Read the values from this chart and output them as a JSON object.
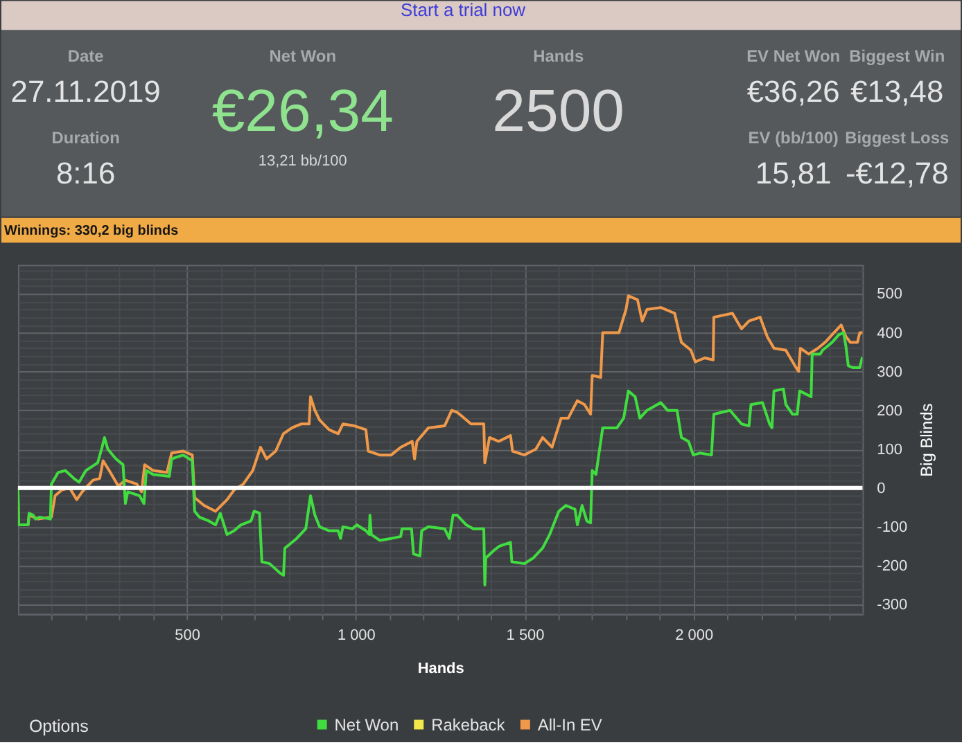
{
  "chart_data": [
    {
      "type": "other",
      "annotations": [
        "Start a trial now",
        "Date",
        "27.11.2019",
        "Duration",
        "8:16",
        "Net Won",
        "€26,34",
        "13,21 bb/100",
        "Hands",
        "2500",
        "EV Net Won",
        "€36,26",
        "Biggest Win",
        "€13,48",
        "EV (bb/100)",
        "15,81",
        "Biggest Loss",
        "-€12,78"
      ]
    },
    {
      "type": "line",
      "title": "Winnings: 330,2 big blinds",
      "xlabel": "Hands",
      "ylabel": "Big Blinds",
      "annotations": [
        "Options"
      ],
      "xlim": [
        0,
        2500
      ],
      "ylim": [
        -325,
        575
      ],
      "xticks": [
        {
          "value": 100,
          "label": null
        },
        {
          "value": 200,
          "label": null
        },
        {
          "value": 300,
          "label": null
        },
        {
          "value": 400,
          "label": null
        },
        500,
        {
          "value": 600,
          "label": null
        },
        {
          "value": 700,
          "label": null
        },
        {
          "value": 800,
          "label": null
        },
        {
          "value": 900,
          "label": null
        },
        {
          "value": 1000,
          "label": "1 000"
        },
        {
          "value": 1100,
          "label": null
        },
        {
          "value": 1200,
          "label": null
        },
        {
          "value": 1300,
          "label": null
        },
        {
          "value": 1400,
          "label": null
        },
        {
          "value": 1500,
          "label": "1 500"
        },
        {
          "value": 1600,
          "label": null
        },
        {
          "value": 1700,
          "label": null
        },
        {
          "value": 1800,
          "label": null
        },
        {
          "value": 1900,
          "label": null
        },
        {
          "value": 2000,
          "label": "2 000"
        },
        {
          "value": 2100,
          "label": null
        },
        {
          "value": 2200,
          "label": null
        },
        {
          "value": 2300,
          "label": null
        },
        {
          "value": 2400,
          "label": null
        }
      ],
      "yticks": [
        {
          "value": -320,
          "label": null
        },
        -300,
        {
          "value": -280,
          "label": null
        },
        {
          "value": -260,
          "label": null
        },
        {
          "value": -240,
          "label": null
        },
        {
          "value": -220,
          "label": null
        },
        -200,
        {
          "value": -180,
          "label": null
        },
        {
          "value": -160,
          "label": null
        },
        {
          "value": -140,
          "label": null
        },
        {
          "value": -120,
          "label": null
        },
        -100,
        {
          "value": -80,
          "label": null
        },
        {
          "value": -60,
          "label": null
        },
        {
          "value": -40,
          "label": null
        },
        {
          "value": -20,
          "label": null
        },
        0,
        {
          "value": 20,
          "label": null
        },
        {
          "value": 40,
          "label": null
        },
        {
          "value": 60,
          "label": null
        },
        {
          "value": 80,
          "label": null
        },
        100,
        {
          "value": 120,
          "label": null
        },
        {
          "value": 140,
          "label": null
        },
        {
          "value": 160,
          "label": null
        },
        {
          "value": 180,
          "label": null
        },
        200,
        {
          "value": 220,
          "label": null
        },
        {
          "value": 240,
          "label": null
        },
        {
          "value": 260,
          "label": null
        },
        {
          "value": 280,
          "label": null
        },
        300,
        {
          "value": 320,
          "label": null
        },
        {
          "value": 340,
          "label": null
        },
        {
          "value": 360,
          "label": null
        },
        {
          "value": 380,
          "label": null
        },
        400,
        {
          "value": 420,
          "label": null
        },
        {
          "value": 440,
          "label": null
        },
        {
          "value": 460,
          "label": null
        },
        {
          "value": 480,
          "label": null
        },
        500,
        {
          "value": 520,
          "label": null
        },
        {
          "value": 540,
          "label": null
        },
        {
          "value": 560,
          "label": null
        }
      ],
      "grid": true,
      "legend": "bottom",
      "ref_lines": [
        {
          "axis": "y",
          "value": 0,
          "color": "#ffffff"
        }
      ],
      "series": [
        {
          "name": "Net Won",
          "color": "#40dc40",
          "x": [
            0,
            2,
            30,
            33,
            45,
            52,
            65,
            96,
            99,
            119,
            140,
            165,
            181,
            201,
            236,
            249,
            256,
            266,
            290,
            311,
            318,
            325,
            360,
            373,
            380,
            400,
            448,
            455,
            489,
            516,
            523,
            537,
            565,
            585,
            599,
            619,
            640,
            660,
            690,
            699,
            715,
            722,
            745,
            777,
            786,
            790,
            825,
            852,
            866,
            879,
            893,
            920,
            948,
            955,
            962,
            990,
            1003,
            1030,
            1040,
            1042,
            1046,
            1071,
            1105,
            1133,
            1137,
            1165,
            1171,
            1190,
            1195,
            1215,
            1263,
            1277,
            1288,
            1300,
            1327,
            1348,
            1379,
            1382,
            1385,
            1410,
            1425,
            1458,
            1462,
            1499,
            1526,
            1553,
            1574,
            1601,
            1622,
            1649,
            1656,
            1670,
            1684,
            1695,
            1700,
            1711,
            1731,
            1773,
            1793,
            1807,
            1827,
            1841,
            1862,
            1903,
            1923,
            1951,
            1964,
            1985,
            1999,
            2019,
            2053,
            2060,
            2108,
            2142,
            2164,
            2170,
            2204,
            2225,
            2232,
            2238,
            2266,
            2273,
            2293,
            2307,
            2314,
            2348,
            2351,
            2375,
            2382,
            2410,
            2430,
            2444,
            2451,
            2458,
            2471,
            2492,
            2499,
            2500
          ],
          "values": [
            0,
            -95,
            -95,
            -65,
            -70,
            -80,
            -75,
            -80,
            10,
            40,
            45,
            25,
            15,
            45,
            65,
            105,
            130,
            100,
            75,
            60,
            -40,
            -10,
            -20,
            -40,
            45,
            35,
            30,
            75,
            85,
            70,
            -60,
            -75,
            -85,
            -95,
            -65,
            -120,
            -110,
            -95,
            -85,
            -60,
            -65,
            -190,
            -195,
            -220,
            -225,
            -155,
            -130,
            -105,
            -20,
            -70,
            -100,
            -110,
            -110,
            -130,
            -100,
            -105,
            -95,
            -110,
            -120,
            -70,
            -120,
            -135,
            -130,
            -125,
            -105,
            -105,
            -170,
            -175,
            -110,
            -100,
            -105,
            -130,
            -70,
            -70,
            -95,
            -105,
            -105,
            -250,
            -180,
            -160,
            -150,
            -140,
            -190,
            -195,
            -180,
            -155,
            -120,
            -60,
            -45,
            -55,
            -95,
            -45,
            -85,
            -90,
            45,
            35,
            155,
            155,
            180,
            250,
            235,
            180,
            200,
            220,
            200,
            200,
            130,
            120,
            85,
            90,
            85,
            190,
            200,
            165,
            160,
            215,
            220,
            165,
            155,
            250,
            255,
            215,
            190,
            190,
            250,
            235,
            345,
            345,
            355,
            375,
            395,
            400,
            365,
            315,
            310,
            310,
            335,
            330
          ]
        },
        {
          "name": "Rakeback",
          "color": "#f2e64a"
        },
        {
          "name": "All-In EV",
          "color": "#f0994a",
          "x": [
            0,
            2,
            30,
            33,
            60,
            99,
            110,
            130,
            153,
            174,
            190,
            222,
            242,
            252,
            270,
            297,
            318,
            352,
            366,
            375,
            400,
            441,
            455,
            489,
            516,
            523,
            551,
            585,
            619,
            640,
            667,
            695,
            718,
            736,
            763,
            786,
            811,
            838,
            862,
            866,
            879,
            893,
            921,
            948,
            962,
            996,
            1030,
            1037,
            1071,
            1105,
            1133,
            1167,
            1174,
            1181,
            1215,
            1263,
            1284,
            1300,
            1314,
            1341,
            1379,
            1382,
            1396,
            1423,
            1458,
            1464,
            1499,
            1533,
            1553,
            1581,
            1608,
            1629,
            1656,
            1677,
            1695,
            1700,
            1725,
            1731,
            1779,
            1800,
            1807,
            1834,
            1848,
            1862,
            1903,
            1944,
            1964,
            1992,
            2005,
            2033,
            2058,
            2060,
            2115,
            2142,
            2164,
            2197,
            2218,
            2238,
            2273,
            2300,
            2311,
            2316,
            2341,
            2368,
            2389,
            2410,
            2437,
            2451,
            2464,
            2485,
            2492,
            2500
          ],
          "values": [
            0,
            -95,
            -95,
            -70,
            -80,
            -75,
            -20,
            -5,
            0,
            -30,
            -10,
            20,
            25,
            70,
            45,
            5,
            20,
            10,
            -10,
            60,
            45,
            40,
            90,
            95,
            85,
            -25,
            -45,
            -60,
            -30,
            -5,
            10,
            45,
            105,
            75,
            95,
            140,
            155,
            165,
            165,
            235,
            200,
            175,
            150,
            140,
            165,
            160,
            150,
            95,
            85,
            85,
            105,
            120,
            75,
            120,
            155,
            160,
            200,
            195,
            185,
            165,
            165,
            65,
            130,
            120,
            135,
            95,
            85,
            100,
            130,
            105,
            180,
            180,
            225,
            215,
            190,
            290,
            285,
            400,
            400,
            460,
            495,
            485,
            430,
            460,
            465,
            450,
            375,
            355,
            325,
            335,
            330,
            440,
            450,
            410,
            430,
            440,
            390,
            360,
            355,
            315,
            300,
            360,
            345,
            360,
            375,
            395,
            420,
            390,
            375,
            375,
            400,
            400
          ]
        }
      ]
    }
  ]
}
